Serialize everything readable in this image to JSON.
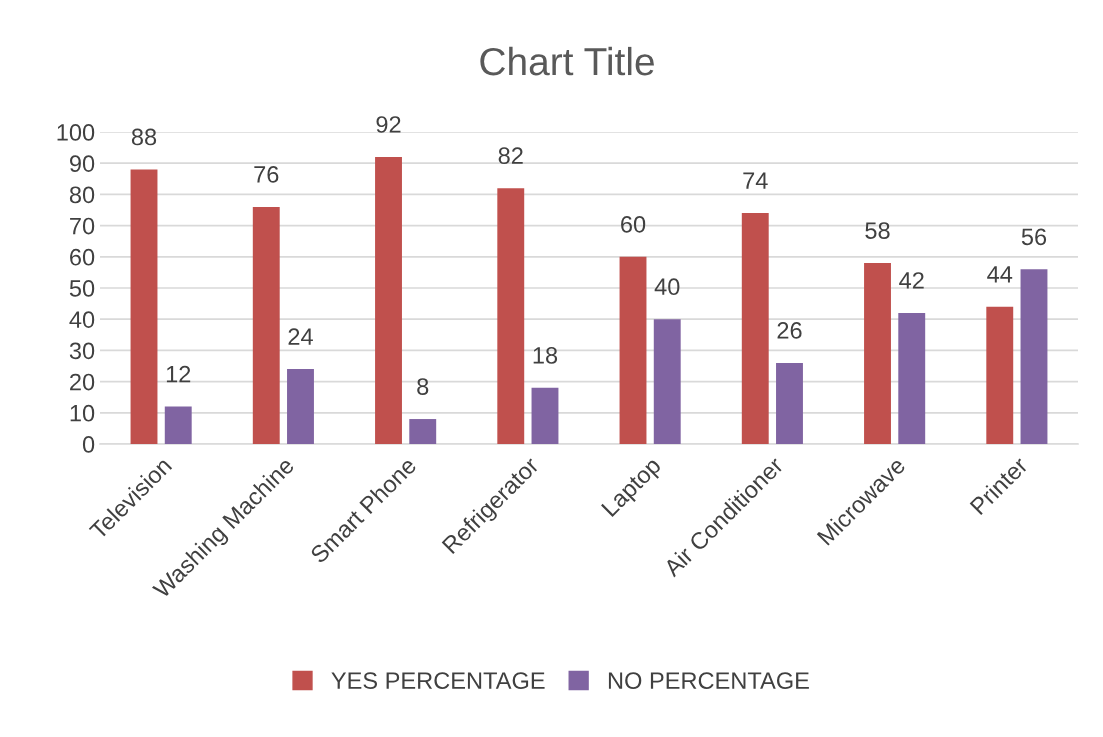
{
  "chart_data": {
    "type": "bar",
    "title": "Chart Title",
    "categories": [
      "Television",
      "Washing Machine",
      "Smart Phone",
      "Refrigerator",
      "Laptop",
      "Air Conditioner",
      "Microwave",
      "Printer"
    ],
    "series": [
      {
        "name": "YES PERCENTAGE",
        "color": "#c0504d",
        "values": [
          88,
          76,
          92,
          82,
          60,
          74,
          58,
          44
        ]
      },
      {
        "name": "NO PERCENTAGE",
        "color": "#8064a2",
        "values": [
          12,
          24,
          8,
          18,
          40,
          26,
          42,
          56
        ]
      }
    ],
    "ylim": [
      0,
      100
    ],
    "yticks": [
      0,
      10,
      20,
      30,
      40,
      50,
      60,
      70,
      80,
      90,
      100
    ],
    "grid": "y",
    "legend": "bottom",
    "data_labels": true
  }
}
